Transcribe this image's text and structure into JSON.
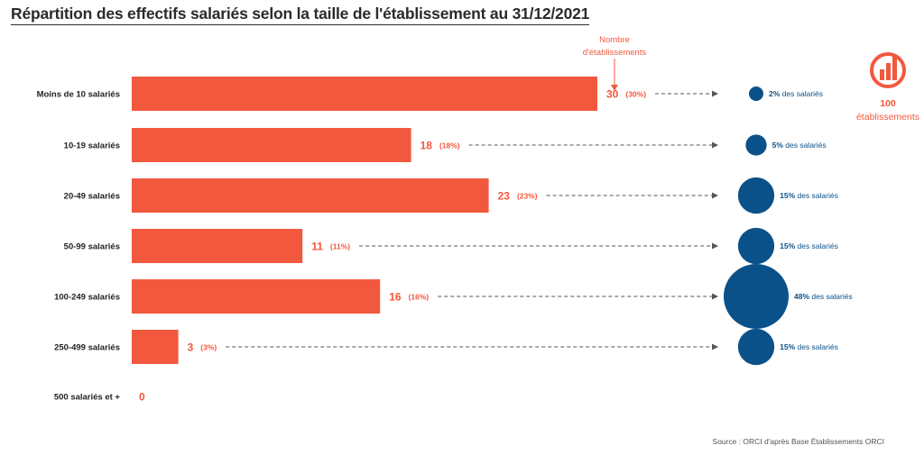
{
  "title": "Répartition des effectifs salariés selon la taille de l'établissement au 31/12/2021",
  "source": "Source : ORCI d'après Base Établissements ORCI",
  "annotation": {
    "line1": "Nombre",
    "line2": "d'établissements"
  },
  "badge": {
    "value": "100",
    "label": "établissements",
    "icon": "bar-chart-circle-icon"
  },
  "colors": {
    "bar": "#F2583E",
    "bubble": "#0B5189",
    "label": "#222222",
    "dash": "#555555"
  },
  "bubble_suffix": "des salariés",
  "chart_data": {
    "type": "bar",
    "orientation": "horizontal",
    "title": "Répartition des effectifs salariés selon la taille de l'établissement au 31/12/2021",
    "categories": [
      "Moins de 10 salariés",
      "10-19 salariés",
      "20-49 salariés",
      "50-99 salariés",
      "100-249 salariés",
      "250-499 salariés",
      "500 salariés et +"
    ],
    "series": [
      {
        "values": [
          30,
          18,
          23,
          11,
          16,
          3,
          0
        ]
      }
    ],
    "value_labels": [
      "30",
      "18",
      "23",
      "11",
      "16",
      "3",
      "0"
    ],
    "pct_labels": [
      "(30%)",
      "(18%)",
      "(23%)",
      "(11%)",
      "(16%)",
      "(3%)",
      ""
    ],
    "employee_share": [
      2,
      5,
      15,
      15,
      48,
      15,
      null
    ],
    "employee_share_labels": [
      "2%",
      "5%",
      "15%",
      "15%",
      "48%",
      "15%",
      ""
    ],
    "total_establishments": 100
  }
}
